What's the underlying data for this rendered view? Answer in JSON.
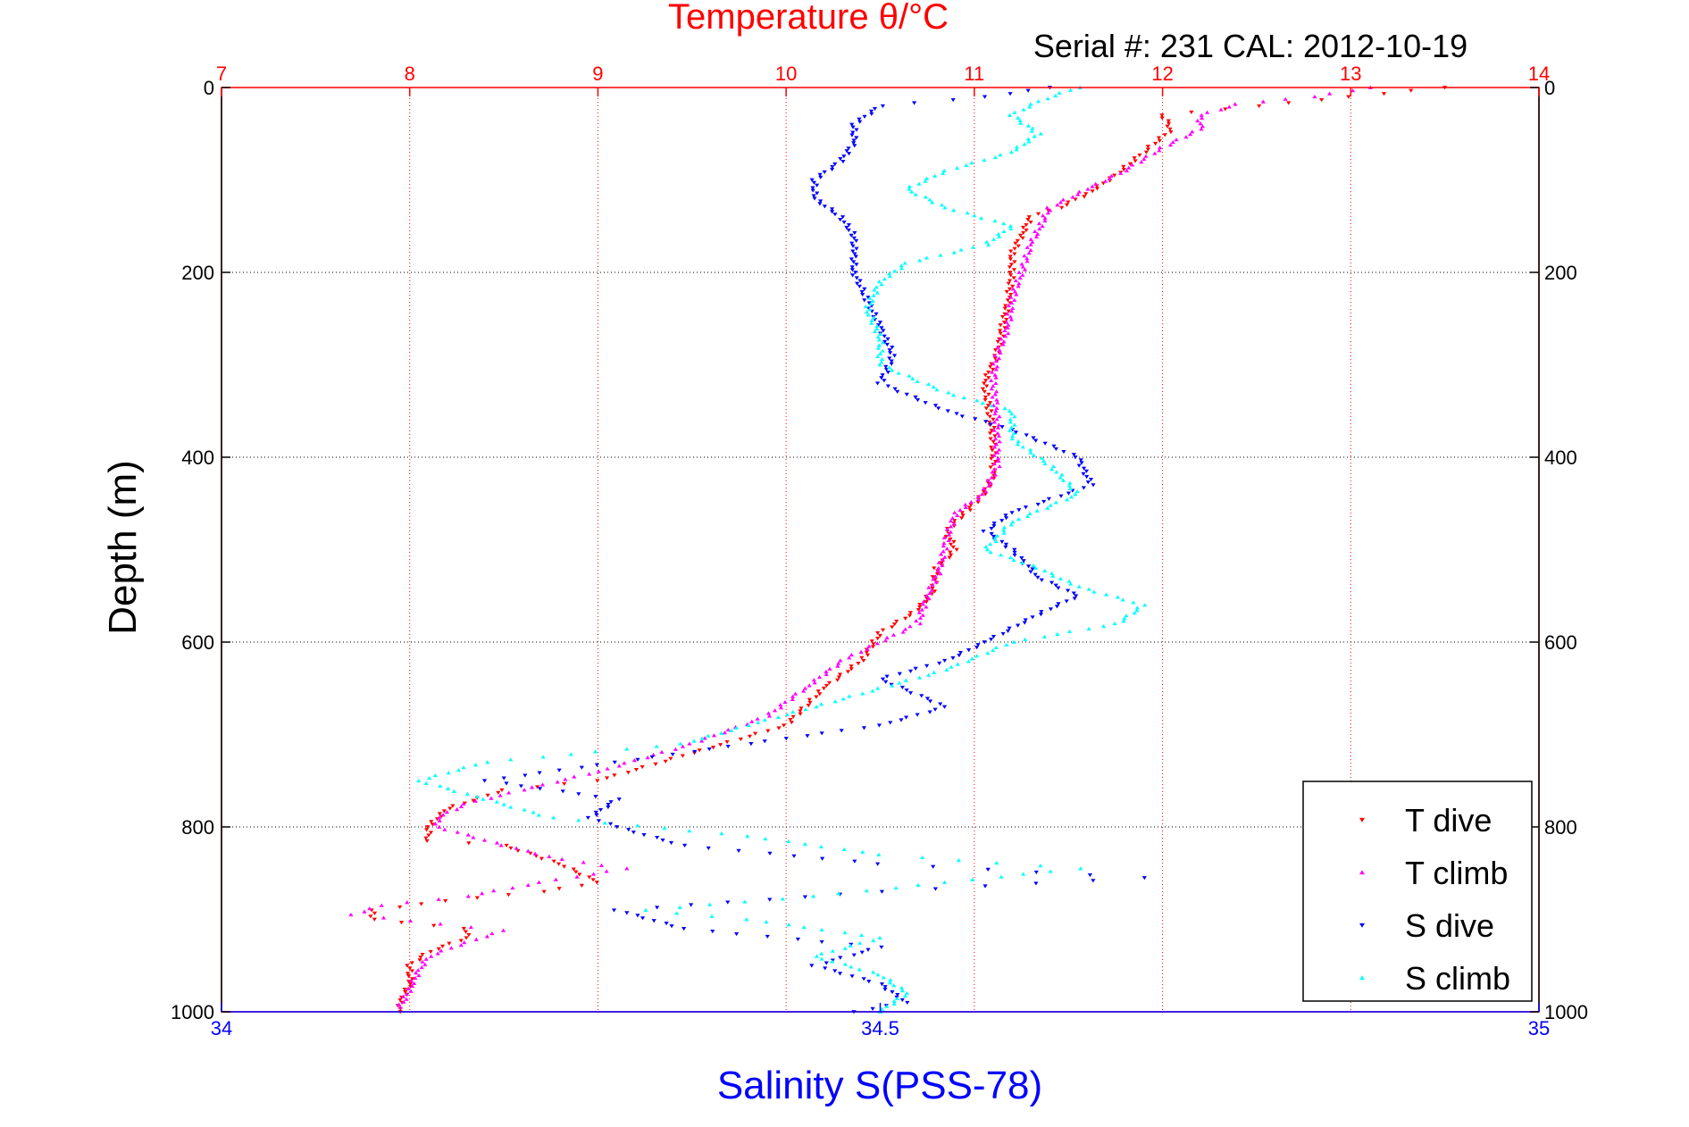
{
  "chart_data": {
    "type": "scatter",
    "title": "Temperature θ/°C",
    "subtitle": "Serial #: 231   CAL: 2012-10-19",
    "ylabel": "Depth (m)",
    "xlabel_bottom": "Salinity S(PSS-78)",
    "y_reversed": true,
    "ylim": [
      0,
      1000
    ],
    "y_ticks": [
      "0",
      "200",
      "400",
      "600",
      "800",
      "1000"
    ],
    "y_tick_values": [
      0,
      200,
      400,
      600,
      800,
      1000
    ],
    "top_axis": {
      "quantity": "temperature",
      "range": [
        7,
        14
      ],
      "ticks": [
        "7",
        "8",
        "9",
        "10",
        "11",
        "12",
        "13",
        "14"
      ],
      "tick_values": [
        7,
        8,
        9,
        10,
        11,
        12,
        13,
        14
      ],
      "color": "#ff0000"
    },
    "bottom_axis": {
      "quantity": "salinity",
      "range": [
        34,
        35
      ],
      "ticks": [
        "34",
        "34.5",
        "35"
      ],
      "tick_values": [
        34,
        34.5,
        35
      ],
      "color": "#0000ff"
    },
    "grid": true,
    "legend_position": "bottom-right",
    "series": [
      {
        "name": "T dive",
        "axis": "top",
        "color": "#ff0000",
        "marker": "triangle-down",
        "points": [
          [
            13.5,
            0
          ],
          [
            13.0,
            10
          ],
          [
            12.5,
            20
          ],
          [
            12.0,
            30
          ],
          [
            12.05,
            45
          ],
          [
            11.9,
            70
          ],
          [
            11.75,
            95
          ],
          [
            11.6,
            115
          ],
          [
            11.45,
            130
          ],
          [
            11.3,
            140
          ],
          [
            11.25,
            160
          ],
          [
            11.2,
            180
          ],
          [
            11.2,
            200
          ],
          [
            11.18,
            230
          ],
          [
            11.15,
            260
          ],
          [
            11.12,
            290
          ],
          [
            11.05,
            320
          ],
          [
            11.08,
            350
          ],
          [
            11.1,
            380
          ],
          [
            11.1,
            420
          ],
          [
            11.05,
            440
          ],
          [
            10.95,
            460
          ],
          [
            10.85,
            480
          ],
          [
            10.9,
            500
          ],
          [
            10.8,
            520
          ],
          [
            10.78,
            545
          ],
          [
            10.7,
            565
          ],
          [
            10.5,
            590
          ],
          [
            10.4,
            620
          ],
          [
            10.2,
            650
          ],
          [
            10.0,
            690
          ],
          [
            9.5,
            720
          ],
          [
            9.0,
            750
          ],
          [
            8.5,
            760
          ],
          [
            8.2,
            780
          ],
          [
            8.1,
            800
          ],
          [
            8.1,
            815
          ],
          [
            8.5,
            820
          ],
          [
            8.8,
            840
          ],
          [
            9.0,
            860
          ],
          [
            8.7,
            870
          ],
          [
            8.2,
            880
          ],
          [
            7.8,
            890
          ],
          [
            7.8,
            900
          ],
          [
            8.3,
            910
          ],
          [
            8.3,
            920
          ],
          [
            8.1,
            935
          ],
          [
            8.0,
            950
          ],
          [
            8.0,
            970
          ],
          [
            7.95,
            990
          ],
          [
            7.95,
            1000
          ]
        ]
      },
      {
        "name": "T climb",
        "axis": "top",
        "color": "#ff00ff",
        "marker": "triangle-up",
        "points": [
          [
            13.1,
            0
          ],
          [
            12.8,
            10
          ],
          [
            12.4,
            18
          ],
          [
            12.2,
            30
          ],
          [
            12.2,
            45
          ],
          [
            12.0,
            65
          ],
          [
            11.8,
            90
          ],
          [
            11.6,
            110
          ],
          [
            11.4,
            130
          ],
          [
            11.35,
            150
          ],
          [
            11.3,
            170
          ],
          [
            11.25,
            200
          ],
          [
            11.2,
            230
          ],
          [
            11.18,
            260
          ],
          [
            11.12,
            290
          ],
          [
            11.1,
            320
          ],
          [
            11.12,
            350
          ],
          [
            11.12,
            380
          ],
          [
            11.12,
            410
          ],
          [
            11.05,
            440
          ],
          [
            10.9,
            460
          ],
          [
            10.85,
            490
          ],
          [
            10.82,
            520
          ],
          [
            10.75,
            550
          ],
          [
            10.7,
            580
          ],
          [
            10.3,
            620
          ],
          [
            10.1,
            650
          ],
          [
            9.9,
            680
          ],
          [
            9.5,
            710
          ],
          [
            9.0,
            740
          ],
          [
            8.6,
            760
          ],
          [
            8.3,
            775
          ],
          [
            8.15,
            790
          ],
          [
            8.15,
            800
          ],
          [
            8.5,
            820
          ],
          [
            8.8,
            835
          ],
          [
            9.15,
            845
          ],
          [
            8.7,
            860
          ],
          [
            8.3,
            875
          ],
          [
            7.85,
            885
          ],
          [
            7.7,
            895
          ],
          [
            8.15,
            905
          ],
          [
            8.5,
            912
          ],
          [
            8.3,
            925
          ],
          [
            8.1,
            940
          ],
          [
            8.05,
            955
          ],
          [
            8.0,
            975
          ],
          [
            7.95,
            995
          ]
        ]
      },
      {
        "name": "S dive",
        "axis": "bottom",
        "color": "#0000ff",
        "marker": "triangle-down",
        "points": [
          [
            34.63,
            0
          ],
          [
            34.58,
            10
          ],
          [
            34.5,
            20
          ],
          [
            34.48,
            40
          ],
          [
            34.48,
            60
          ],
          [
            34.47,
            80
          ],
          [
            34.45,
            100
          ],
          [
            34.45,
            120
          ],
          [
            34.47,
            140
          ],
          [
            34.48,
            160
          ],
          [
            34.48,
            180
          ],
          [
            34.48,
            200
          ],
          [
            34.49,
            230
          ],
          [
            34.5,
            260
          ],
          [
            34.51,
            290
          ],
          [
            34.5,
            320
          ],
          [
            34.55,
            350
          ],
          [
            34.6,
            370
          ],
          [
            34.65,
            400
          ],
          [
            34.66,
            430
          ],
          [
            34.6,
            460
          ],
          [
            34.58,
            480
          ],
          [
            34.6,
            500
          ],
          [
            34.62,
            530
          ],
          [
            34.65,
            550
          ],
          [
            34.62,
            570
          ],
          [
            34.58,
            600
          ],
          [
            34.55,
            620
          ],
          [
            34.5,
            640
          ],
          [
            34.55,
            670
          ],
          [
            34.5,
            690
          ],
          [
            34.4,
            710
          ],
          [
            34.3,
            730
          ],
          [
            34.2,
            750
          ],
          [
            34.3,
            770
          ],
          [
            34.28,
            790
          ],
          [
            34.3,
            800
          ],
          [
            34.35,
            820
          ],
          [
            34.5,
            840
          ],
          [
            34.7,
            855
          ],
          [
            34.5,
            870
          ],
          [
            34.3,
            890
          ],
          [
            34.35,
            910
          ],
          [
            34.5,
            930
          ],
          [
            34.45,
            950
          ],
          [
            34.5,
            970
          ],
          [
            34.52,
            990
          ],
          [
            34.48,
            1000
          ]
        ]
      },
      {
        "name": "S climb",
        "axis": "bottom",
        "color": "#00ffff",
        "marker": "triangle-up",
        "points": [
          [
            34.65,
            0
          ],
          [
            34.62,
            15
          ],
          [
            34.6,
            30
          ],
          [
            34.62,
            50
          ],
          [
            34.6,
            70
          ],
          [
            34.55,
            90
          ],
          [
            34.52,
            110
          ],
          [
            34.55,
            130
          ],
          [
            34.6,
            150
          ],
          [
            34.58,
            170
          ],
          [
            34.52,
            190
          ],
          [
            34.5,
            210
          ],
          [
            34.49,
            240
          ],
          [
            34.5,
            270
          ],
          [
            34.5,
            300
          ],
          [
            34.55,
            330
          ],
          [
            34.6,
            350
          ],
          [
            34.6,
            380
          ],
          [
            34.63,
            410
          ],
          [
            34.65,
            440
          ],
          [
            34.6,
            470
          ],
          [
            34.58,
            500
          ],
          [
            34.62,
            520
          ],
          [
            34.65,
            540
          ],
          [
            34.7,
            560
          ],
          [
            34.68,
            580
          ],
          [
            34.6,
            600
          ],
          [
            34.55,
            630
          ],
          [
            34.5,
            650
          ],
          [
            34.45,
            670
          ],
          [
            34.4,
            690
          ],
          [
            34.35,
            710
          ],
          [
            34.2,
            730
          ],
          [
            34.15,
            750
          ],
          [
            34.2,
            770
          ],
          [
            34.25,
            790
          ],
          [
            34.4,
            810
          ],
          [
            34.5,
            830
          ],
          [
            34.65,
            845
          ],
          [
            34.55,
            860
          ],
          [
            34.45,
            875
          ],
          [
            34.32,
            890
          ],
          [
            34.4,
            900
          ],
          [
            34.5,
            920
          ],
          [
            34.45,
            940
          ],
          [
            34.5,
            960
          ],
          [
            34.52,
            980
          ],
          [
            34.5,
            1000
          ]
        ]
      }
    ]
  }
}
